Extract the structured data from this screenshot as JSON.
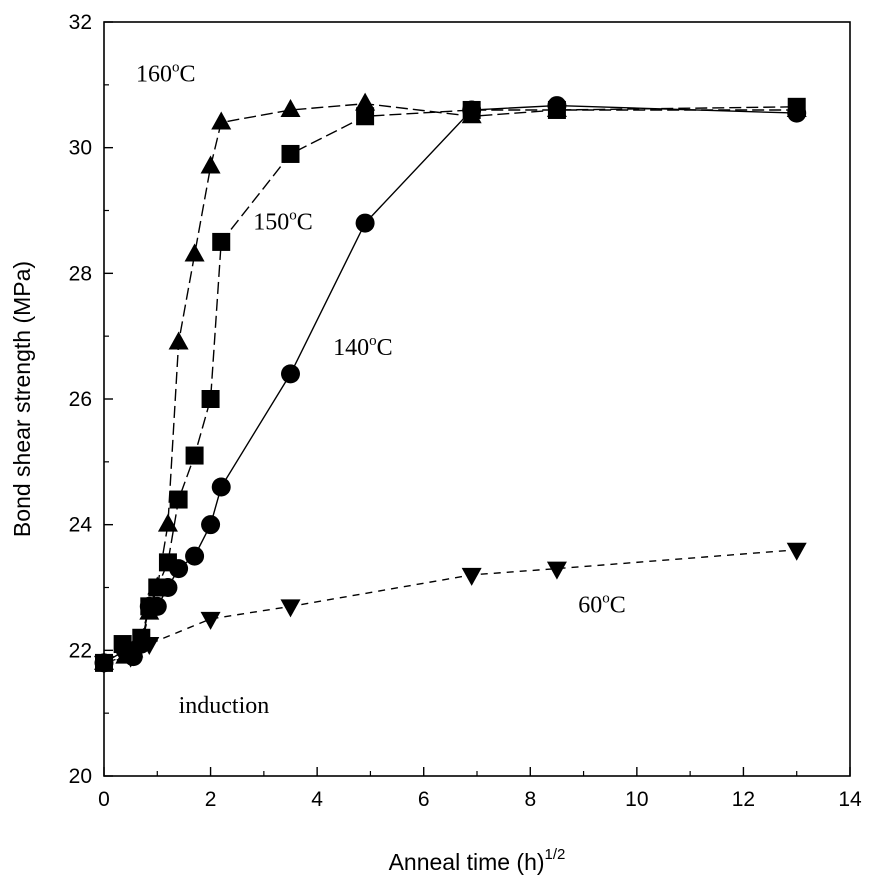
{
  "chart_data": {
    "type": "scatter",
    "title": "",
    "xlabel": "Anneal time (h)",
    "xlabel_superscript": "1/2",
    "ylabel": "Bond shear strength (MPa)",
    "xlim": [
      0,
      14
    ],
    "ylim": [
      20,
      32
    ],
    "xticks": [
      "0",
      "2",
      "4",
      "6",
      "8",
      "10",
      "12",
      "14"
    ],
    "yticks": [
      "20",
      "22",
      "24",
      "26",
      "28",
      "30",
      "32"
    ],
    "grid": false,
    "series": [
      {
        "name": "160°C",
        "marker": "triangle-up",
        "line": "long-dash",
        "x": [
          0,
          0.4,
          0.55,
          0.7,
          0.85,
          1.0,
          1.2,
          1.4,
          1.7,
          2.0,
          2.2,
          3.5,
          4.9,
          6.9,
          8.5,
          13
        ],
        "y": [
          21.8,
          21.9,
          22.0,
          22.1,
          22.6,
          23.0,
          24.0,
          26.9,
          28.3,
          29.7,
          30.4,
          30.6,
          30.7,
          30.5,
          30.6,
          30.6
        ]
      },
      {
        "name": "150°C",
        "marker": "square",
        "line": "long-dash",
        "x": [
          0,
          0.35,
          0.5,
          0.7,
          0.85,
          1.0,
          1.2,
          1.4,
          1.7,
          2.0,
          2.2,
          3.5,
          4.9,
          6.9,
          8.5,
          13
        ],
        "y": [
          21.8,
          22.1,
          22.0,
          22.2,
          22.7,
          23.0,
          23.4,
          24.4,
          25.1,
          26.0,
          28.5,
          29.9,
          30.5,
          30.6,
          30.6,
          30.65
        ]
      },
      {
        "name": "140°C",
        "marker": "circle",
        "line": "solid",
        "x": [
          0,
          0.4,
          0.55,
          0.7,
          0.85,
          1.0,
          1.2,
          1.4,
          1.7,
          2.0,
          2.2,
          3.5,
          4.9,
          6.9,
          8.5,
          13
        ],
        "y": [
          21.8,
          22.0,
          21.9,
          22.1,
          22.7,
          22.7,
          23.0,
          23.3,
          23.5,
          24.0,
          24.6,
          26.4,
          28.8,
          30.6,
          30.67,
          30.55
        ]
      },
      {
        "name": "60°C",
        "marker": "triangle-down",
        "line": "short-dash",
        "x": [
          0,
          0.5,
          0.85,
          2.0,
          3.5,
          6.9,
          8.5,
          13
        ],
        "y": [
          21.8,
          21.9,
          22.1,
          22.5,
          22.7,
          23.2,
          23.3,
          23.6
        ]
      }
    ],
    "annotations": [
      {
        "text": "160",
        "suffix": "C",
        "series": "160°C",
        "x": 0.6,
        "y": 31.05
      },
      {
        "text": "150",
        "suffix": "C",
        "series": "150°C",
        "x": 2.8,
        "y": 28.7
      },
      {
        "text": "140",
        "suffix": "C",
        "series": "140°C",
        "x": 4.3,
        "y": 26.7
      },
      {
        "text": "60",
        "suffix": "C",
        "series": "60°C",
        "x": 8.9,
        "y": 22.6
      },
      {
        "text": "induction",
        "suffix": "",
        "series": "",
        "x": 1.4,
        "y": 21.0
      }
    ],
    "degree_sup": "o"
  },
  "colors": {
    "ink": "#000000",
    "background": "#ffffff"
  }
}
